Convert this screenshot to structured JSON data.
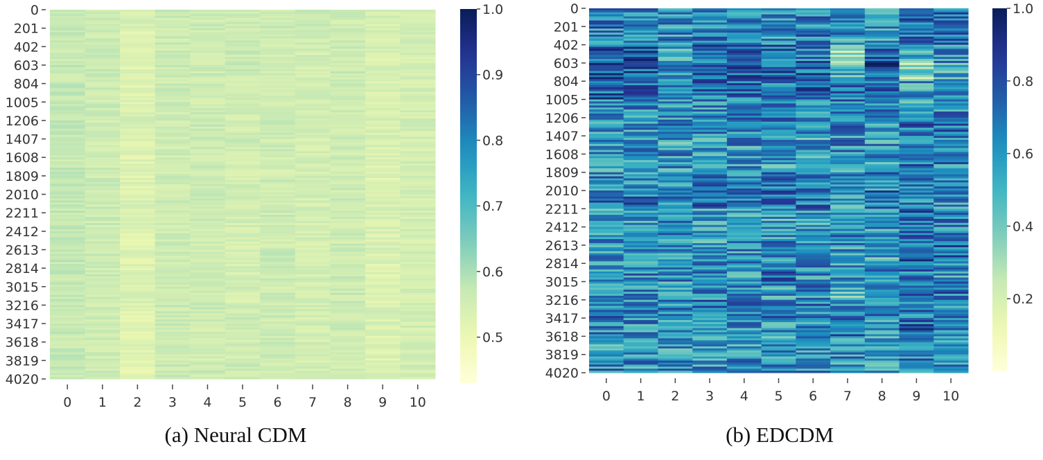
{
  "chart_data": [
    {
      "type": "heatmap",
      "title": "(a) Neural CDM",
      "x_tick_labels": [
        "0",
        "1",
        "2",
        "3",
        "4",
        "5",
        "6",
        "7",
        "8",
        "9",
        "10"
      ],
      "y_tick_labels": [
        "0",
        "201",
        "402",
        "603",
        "804",
        "1005",
        "1206",
        "1407",
        "1608",
        "1809",
        "2010",
        "2211",
        "2412",
        "2613",
        "2814",
        "3015",
        "3216",
        "3417",
        "3618",
        "3819",
        "4020"
      ],
      "colormap": "YlGnBu",
      "color_range": [
        0.43,
        1.0
      ],
      "colorbar_ticks": [
        "1.0",
        "0.9",
        "0.8",
        "0.7",
        "0.6",
        "0.5"
      ],
      "colorbar_tick_values": [
        1.0,
        0.9,
        0.8,
        0.7,
        0.6,
        0.5
      ],
      "value_note_per_row_block_means": [
        [
          0.57,
          0.56,
          0.54,
          0.56,
          0.56,
          0.56,
          0.56,
          0.56,
          0.56,
          0.55,
          0.55
        ],
        [
          0.57,
          0.56,
          0.53,
          0.56,
          0.56,
          0.56,
          0.56,
          0.56,
          0.56,
          0.54,
          0.55
        ],
        [
          0.56,
          0.56,
          0.53,
          0.56,
          0.56,
          0.56,
          0.55,
          0.55,
          0.56,
          0.54,
          0.55
        ],
        [
          0.57,
          0.56,
          0.53,
          0.56,
          0.56,
          0.56,
          0.56,
          0.55,
          0.56,
          0.54,
          0.55
        ],
        [
          0.57,
          0.56,
          0.53,
          0.56,
          0.56,
          0.55,
          0.56,
          0.55,
          0.56,
          0.54,
          0.55
        ],
        [
          0.57,
          0.56,
          0.54,
          0.56,
          0.56,
          0.55,
          0.56,
          0.55,
          0.56,
          0.54,
          0.55
        ],
        [
          0.57,
          0.56,
          0.54,
          0.56,
          0.56,
          0.55,
          0.56,
          0.55,
          0.56,
          0.54,
          0.55
        ],
        [
          0.57,
          0.56,
          0.53,
          0.56,
          0.56,
          0.56,
          0.56,
          0.55,
          0.56,
          0.54,
          0.55
        ],
        [
          0.57,
          0.56,
          0.53,
          0.56,
          0.56,
          0.55,
          0.55,
          0.55,
          0.56,
          0.53,
          0.55
        ],
        [
          0.57,
          0.56,
          0.53,
          0.56,
          0.56,
          0.55,
          0.56,
          0.55,
          0.56,
          0.53,
          0.55
        ],
        [
          0.57,
          0.56,
          0.54,
          0.56,
          0.56,
          0.56,
          0.56,
          0.55,
          0.56,
          0.54,
          0.55
        ],
        [
          0.57,
          0.56,
          0.53,
          0.56,
          0.56,
          0.55,
          0.56,
          0.55,
          0.56,
          0.54,
          0.55
        ],
        [
          0.57,
          0.56,
          0.53,
          0.56,
          0.56,
          0.55,
          0.55,
          0.55,
          0.56,
          0.54,
          0.55
        ],
        [
          0.57,
          0.56,
          0.53,
          0.56,
          0.56,
          0.55,
          0.56,
          0.55,
          0.56,
          0.53,
          0.55
        ],
        [
          0.57,
          0.56,
          0.53,
          0.56,
          0.56,
          0.55,
          0.56,
          0.55,
          0.56,
          0.53,
          0.55
        ],
        [
          0.57,
          0.56,
          0.54,
          0.56,
          0.56,
          0.55,
          0.56,
          0.55,
          0.56,
          0.53,
          0.55
        ],
        [
          0.57,
          0.56,
          0.53,
          0.56,
          0.56,
          0.56,
          0.56,
          0.55,
          0.56,
          0.54,
          0.55
        ],
        [
          0.57,
          0.56,
          0.53,
          0.56,
          0.55,
          0.55,
          0.56,
          0.55,
          0.56,
          0.53,
          0.55
        ],
        [
          0.57,
          0.56,
          0.53,
          0.56,
          0.55,
          0.55,
          0.56,
          0.55,
          0.56,
          0.53,
          0.55
        ],
        [
          0.57,
          0.56,
          0.52,
          0.56,
          0.56,
          0.56,
          0.56,
          0.55,
          0.56,
          0.54,
          0.55
        ]
      ]
    },
    {
      "type": "heatmap",
      "title": "(b) EDCDM",
      "x_tick_labels": [
        "0",
        "1",
        "2",
        "3",
        "4",
        "5",
        "6",
        "7",
        "8",
        "9",
        "10"
      ],
      "y_tick_labels": [
        "0",
        "201",
        "402",
        "603",
        "804",
        "1005",
        "1206",
        "1407",
        "1608",
        "1809",
        "2010",
        "2211",
        "2412",
        "2613",
        "2814",
        "3015",
        "3216",
        "3417",
        "3618",
        "3819",
        "4020"
      ],
      "colormap": "YlGnBu",
      "color_range": [
        0.0,
        1.0
      ],
      "colorbar_ticks": [
        "1.0",
        "0.8",
        "0.6",
        "0.4",
        "0.2"
      ],
      "colorbar_tick_values": [
        1.0,
        0.8,
        0.6,
        0.4,
        0.2
      ],
      "value_note_per_row_block_means": [
        [
          0.68,
          0.66,
          0.6,
          0.68,
          0.6,
          0.62,
          0.64,
          0.62,
          0.58,
          0.7,
          0.74
        ],
        [
          0.66,
          0.66,
          0.62,
          0.66,
          0.58,
          0.62,
          0.66,
          0.6,
          0.58,
          0.68,
          0.66
        ],
        [
          0.78,
          0.76,
          0.56,
          0.72,
          0.7,
          0.72,
          0.7,
          0.28,
          0.78,
          0.5,
          0.6
        ],
        [
          0.76,
          0.74,
          0.6,
          0.74,
          0.74,
          0.72,
          0.74,
          0.48,
          0.8,
          0.36,
          0.54
        ],
        [
          0.74,
          0.72,
          0.62,
          0.7,
          0.68,
          0.66,
          0.72,
          0.66,
          0.7,
          0.56,
          0.6
        ],
        [
          0.62,
          0.62,
          0.6,
          0.64,
          0.62,
          0.62,
          0.62,
          0.66,
          0.66,
          0.48,
          0.62
        ],
        [
          0.6,
          0.6,
          0.62,
          0.58,
          0.64,
          0.64,
          0.58,
          0.68,
          0.62,
          0.7,
          0.7
        ],
        [
          0.58,
          0.58,
          0.56,
          0.56,
          0.6,
          0.6,
          0.56,
          0.62,
          0.6,
          0.62,
          0.64
        ],
        [
          0.58,
          0.56,
          0.6,
          0.54,
          0.6,
          0.58,
          0.54,
          0.6,
          0.58,
          0.68,
          0.64
        ],
        [
          0.62,
          0.62,
          0.62,
          0.64,
          0.64,
          0.64,
          0.64,
          0.62,
          0.64,
          0.72,
          0.66
        ],
        [
          0.72,
          0.7,
          0.64,
          0.72,
          0.72,
          0.68,
          0.7,
          0.58,
          0.7,
          0.66,
          0.6
        ],
        [
          0.58,
          0.56,
          0.64,
          0.54,
          0.56,
          0.56,
          0.56,
          0.64,
          0.56,
          0.7,
          0.62
        ],
        [
          0.6,
          0.58,
          0.6,
          0.56,
          0.6,
          0.6,
          0.58,
          0.66,
          0.6,
          0.72,
          0.62
        ],
        [
          0.62,
          0.6,
          0.58,
          0.58,
          0.6,
          0.64,
          0.62,
          0.58,
          0.54,
          0.76,
          0.72
        ],
        [
          0.6,
          0.62,
          0.62,
          0.6,
          0.6,
          0.68,
          0.6,
          0.56,
          0.6,
          0.68,
          0.6
        ],
        [
          0.62,
          0.62,
          0.6,
          0.6,
          0.62,
          0.58,
          0.62,
          0.5,
          0.64,
          0.7,
          0.68
        ],
        [
          0.68,
          0.66,
          0.62,
          0.66,
          0.64,
          0.66,
          0.66,
          0.6,
          0.62,
          0.68,
          0.64
        ],
        [
          0.62,
          0.6,
          0.6,
          0.6,
          0.6,
          0.6,
          0.6,
          0.7,
          0.58,
          0.74,
          0.62
        ],
        [
          0.58,
          0.58,
          0.58,
          0.58,
          0.58,
          0.58,
          0.58,
          0.62,
          0.56,
          0.66,
          0.6
        ],
        [
          0.62,
          0.6,
          0.62,
          0.6,
          0.6,
          0.62,
          0.6,
          0.6,
          0.6,
          0.68,
          0.62
        ]
      ]
    }
  ],
  "captions": {
    "left": "(a) Neural CDM",
    "right": "(b) EDCDM"
  }
}
